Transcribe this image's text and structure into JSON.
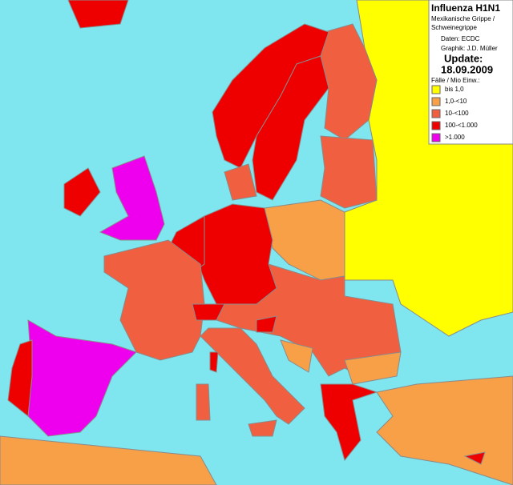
{
  "header": {
    "title": "Influenza H1N1",
    "subtitle_lines": [
      "Mexikanische Grippe /",
      "Schweinegrippe"
    ],
    "source": "Daten: ECDC",
    "credit": "Graphik: J.D. Müller",
    "update_label": "Update:",
    "update_date": "18.09.2009"
  },
  "legend": {
    "title": "Fälle / Mio Einw.:",
    "items": [
      {
        "label": "bis 1,0",
        "color": "#ffff00"
      },
      {
        "label": "1,0-<10",
        "color": "#f8a048"
      },
      {
        "label": "10-<100",
        "color": "#f06040"
      },
      {
        "label": "100-<1.000",
        "color": "#ee0000"
      },
      {
        "label": ">1.000",
        "color": "#ee00ee"
      }
    ]
  }
}
